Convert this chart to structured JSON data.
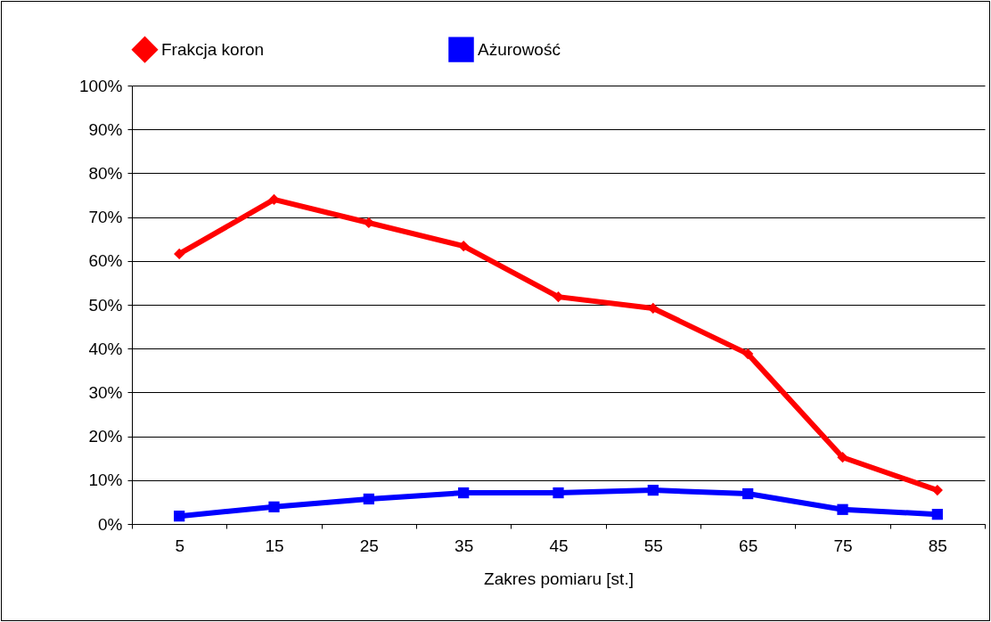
{
  "chart_data": {
    "type": "line",
    "xlabel": "Zakres pomiaru [st.]",
    "categories": [
      "5",
      "15",
      "25",
      "35",
      "45",
      "55",
      "65",
      "75",
      "85"
    ],
    "series": [
      {
        "name": "Frakcja koron",
        "color": "#ff0000",
        "marker": "diamond",
        "values": [
          61.6,
          74.0,
          68.7,
          63.4,
          51.8,
          49.2,
          38.8,
          15.2,
          7.7
        ]
      },
      {
        "name": "Ażurowość",
        "color": "#0000ff",
        "marker": "square",
        "values": [
          1.8,
          3.9,
          5.7,
          7.1,
          7.1,
          7.7,
          6.9,
          3.3,
          2.2
        ]
      }
    ],
    "ylim": [
      0,
      100
    ],
    "yticks": [
      {
        "value": 0,
        "label": "0%"
      },
      {
        "value": 10,
        "label": "10%"
      },
      {
        "value": 20,
        "label": "20%"
      },
      {
        "value": 30,
        "label": "30%"
      },
      {
        "value": 40,
        "label": "40%"
      },
      {
        "value": 50,
        "label": "50%"
      },
      {
        "value": 60,
        "label": "60%"
      },
      {
        "value": 70,
        "label": "70%"
      },
      {
        "value": 80,
        "label": "80%"
      },
      {
        "value": 90,
        "label": "90%"
      },
      {
        "value": 100,
        "label": "100%"
      }
    ],
    "grid": "y",
    "legend": "top",
    "line_style": "solid"
  }
}
